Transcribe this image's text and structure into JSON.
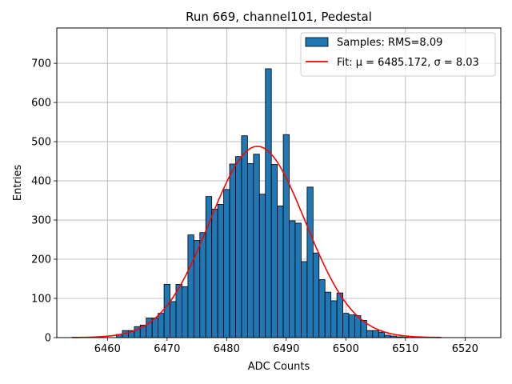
{
  "chart_data": {
    "type": "bar",
    "title": "Run 669, channel101, Pedestal",
    "xlabel": "ADC Counts",
    "ylabel": "Entries",
    "xlim": [
      6451.5,
      6526
    ],
    "ylim": [
      0,
      790
    ],
    "grid": true,
    "legend_position": "top-right",
    "xticks": [
      6460,
      6470,
      6480,
      6490,
      6500,
      6510,
      6520
    ],
    "yticks": [
      0,
      100,
      200,
      300,
      400,
      500,
      600,
      700
    ],
    "bin_width": 1,
    "bins": [
      {
        "x": 6462,
        "y": 8
      },
      {
        "x": 6463,
        "y": 18
      },
      {
        "x": 6464,
        "y": 18
      },
      {
        "x": 6465,
        "y": 28
      },
      {
        "x": 6466,
        "y": 32
      },
      {
        "x": 6467,
        "y": 50
      },
      {
        "x": 6468,
        "y": 50
      },
      {
        "x": 6469,
        "y": 62
      },
      {
        "x": 6470,
        "y": 136
      },
      {
        "x": 6471,
        "y": 92
      },
      {
        "x": 6472,
        "y": 136
      },
      {
        "x": 6473,
        "y": 130
      },
      {
        "x": 6474,
        "y": 262
      },
      {
        "x": 6475,
        "y": 248
      },
      {
        "x": 6476,
        "y": 268
      },
      {
        "x": 6477,
        "y": 360
      },
      {
        "x": 6478,
        "y": 328
      },
      {
        "x": 6479,
        "y": 340
      },
      {
        "x": 6480,
        "y": 378
      },
      {
        "x": 6481,
        "y": 443
      },
      {
        "x": 6482,
        "y": 462
      },
      {
        "x": 6483,
        "y": 515
      },
      {
        "x": 6484,
        "y": 444
      },
      {
        "x": 6485,
        "y": 468
      },
      {
        "x": 6486,
        "y": 366
      },
      {
        "x": 6487,
        "y": 686
      },
      {
        "x": 6488,
        "y": 442
      },
      {
        "x": 6489,
        "y": 336
      },
      {
        "x": 6490,
        "y": 518
      },
      {
        "x": 6491,
        "y": 298
      },
      {
        "x": 6492,
        "y": 292
      },
      {
        "x": 6493,
        "y": 194
      },
      {
        "x": 6494,
        "y": 384
      },
      {
        "x": 6495,
        "y": 216
      },
      {
        "x": 6496,
        "y": 148
      },
      {
        "x": 6497,
        "y": 116
      },
      {
        "x": 6498,
        "y": 94
      },
      {
        "x": 6499,
        "y": 114
      },
      {
        "x": 6500,
        "y": 62
      },
      {
        "x": 6501,
        "y": 58
      },
      {
        "x": 6502,
        "y": 56
      },
      {
        "x": 6503,
        "y": 44
      },
      {
        "x": 6504,
        "y": 18
      },
      {
        "x": 6505,
        "y": 18
      },
      {
        "x": 6506,
        "y": 14
      },
      {
        "x": 6507,
        "y": 6
      },
      {
        "x": 6508,
        "y": 4
      },
      {
        "x": 6509,
        "y": 2
      },
      {
        "x": 6510,
        "y": 1
      }
    ],
    "series": [
      {
        "name": "Samples: RMS=8.09",
        "kind": "histogram",
        "color": "#1f77b4"
      },
      {
        "name": "Fit: μ = 6485.172, σ = 8.03",
        "kind": "line",
        "color": "#ff0000",
        "mu": 6485.172,
        "sigma": 8.03,
        "amplitude": 488,
        "x_range": [
          6454,
          6516
        ]
      }
    ]
  }
}
